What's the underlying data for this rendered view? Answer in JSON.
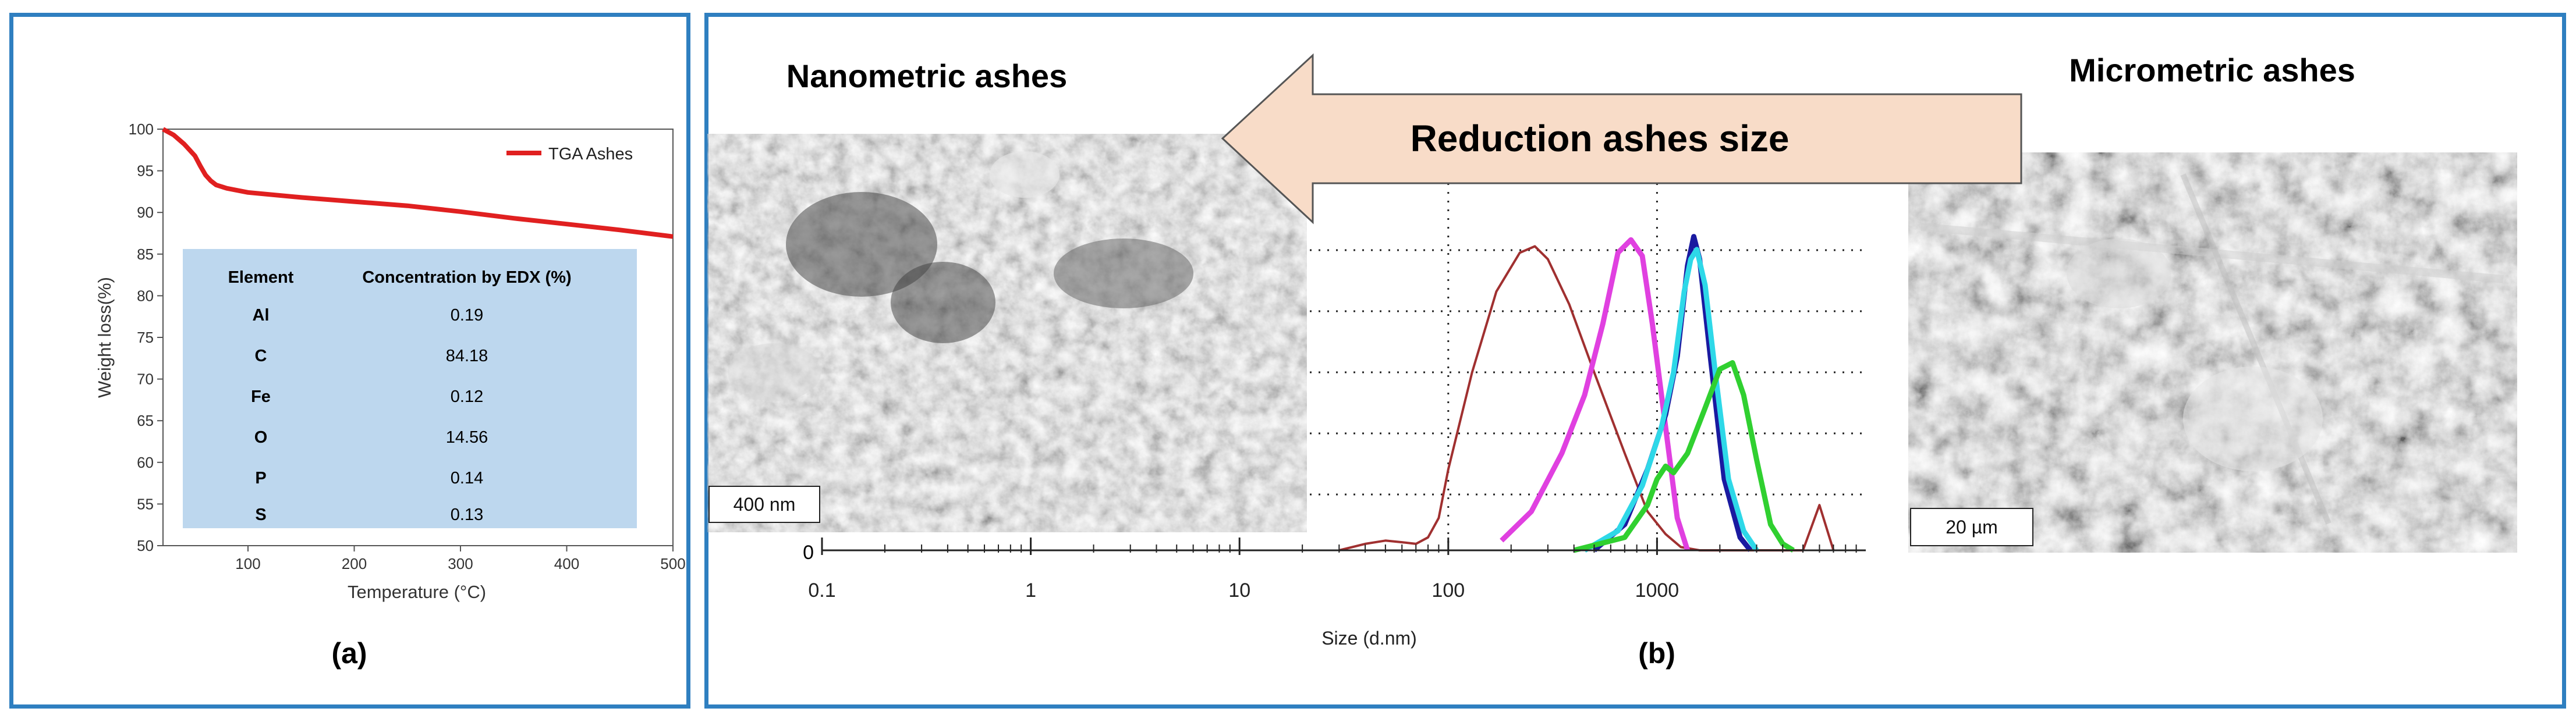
{
  "panel_a": {
    "caption": "(a)",
    "chart_data": {
      "type": "line",
      "xlabel": "Temperature (°C)",
      "ylabel": "Weight loss(%)",
      "xlim": [
        20,
        500
      ],
      "ylim": [
        50,
        100
      ],
      "x_ticks": [
        "100",
        "200",
        "300",
        "400",
        "500"
      ],
      "y_ticks": [
        "50",
        "55",
        "60",
        "65",
        "70",
        "75",
        "80",
        "85",
        "90",
        "95",
        "100"
      ],
      "series": [
        {
          "name": "TGA Ashes",
          "color": "#e02020",
          "x": [
            20,
            30,
            40,
            50,
            55,
            60,
            65,
            70,
            80,
            100,
            150,
            200,
            250,
            300,
            350,
            400,
            450,
            500
          ],
          "y": [
            100,
            99.3,
            98.2,
            96.8,
            95.6,
            94.5,
            93.8,
            93.3,
            92.9,
            92.4,
            91.8,
            91.3,
            90.8,
            90.1,
            89.3,
            88.6,
            87.9,
            87.1
          ]
        }
      ],
      "legend_position": "top-right"
    },
    "table": {
      "headers": [
        "Element",
        "Concentration by EDX (%)"
      ],
      "rows": [
        [
          "Al",
          "0.19"
        ],
        [
          "C",
          "84.18"
        ],
        [
          "Fe",
          "0.12"
        ],
        [
          "O",
          "14.56"
        ],
        [
          "P",
          "0.14"
        ],
        [
          "S",
          "0.13"
        ]
      ],
      "background": "#bdd7ee"
    }
  },
  "panel_b": {
    "caption": "(b)",
    "label_left": "Nanometric ashes",
    "label_right": "Micrometric ashes",
    "arrow_text": "Reduction ashes size",
    "arrow_fill": "#f8dcc8",
    "scale_left": "400 nm",
    "scale_right": "20 µm",
    "chart_data": {
      "type": "line",
      "xlabel": "Size (d.nm)",
      "x_scale": "log",
      "xlim": [
        0.1,
        10000
      ],
      "x_ticks": [
        "0.1",
        "1",
        "10",
        "100",
        "1000"
      ],
      "y_ticks": [
        "0"
      ],
      "grid": "dotted",
      "series": [
        {
          "color": "#a03030",
          "x": [
            30,
            40,
            50,
            60,
            70,
            80,
            90,
            100,
            130,
            170,
            220,
            260,
            300,
            380,
            500,
            700,
            900,
            1100,
            1300,
            1600,
            2000,
            2600,
            3200,
            4000,
            5000,
            6000,
            7000
          ],
          "y": [
            0,
            2,
            3,
            2.5,
            2,
            4,
            10,
            25,
            55,
            80,
            92,
            94,
            90,
            76,
            55,
            30,
            12,
            5,
            1,
            0,
            0,
            0,
            0,
            0,
            0,
            14,
            0
          ]
        },
        {
          "color": "#e040e0",
          "x": [
            180,
            250,
            350,
            450,
            550,
            650,
            750,
            850,
            950,
            1100,
            1250,
            1400
          ],
          "y": [
            3,
            12,
            30,
            48,
            70,
            92,
            96,
            91,
            70,
            38,
            10,
            0
          ]
        },
        {
          "color": "#1a1aa0",
          "x": [
            500,
            700,
            900,
            1100,
            1250,
            1400,
            1500,
            1600,
            1800,
            2100,
            2500,
            2800
          ],
          "y": [
            0,
            8,
            25,
            42,
            60,
            88,
            97,
            90,
            60,
            22,
            4,
            0
          ]
        },
        {
          "color": "#2ed8e8",
          "x": [
            450,
            650,
            850,
            1050,
            1200,
            1350,
            1450,
            1550,
            1700,
            1900,
            2200,
            2600,
            3000
          ],
          "y": [
            0,
            6,
            20,
            38,
            55,
            80,
            90,
            93,
            82,
            55,
            22,
            6,
            0
          ]
        },
        {
          "color": "#30d030",
          "x": [
            400,
            700,
            900,
            1000,
            1100,
            1200,
            1400,
            1700,
            2000,
            2300,
            2600,
            3000,
            3500,
            4000,
            4500
          ],
          "y": [
            0,
            4,
            14,
            22,
            26,
            24,
            30,
            44,
            56,
            58,
            48,
            28,
            8,
            2,
            0
          ]
        }
      ]
    }
  }
}
